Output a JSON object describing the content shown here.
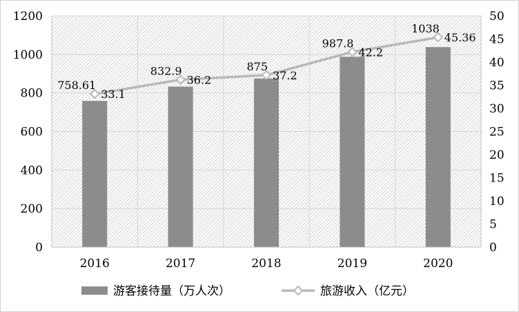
{
  "chart_data": {
    "type": "bar",
    "categories": [
      "2016",
      "2017",
      "2018",
      "2019",
      "2020"
    ],
    "series": [
      {
        "name": "游客接待量（万人次）",
        "kind": "bar",
        "axis": "left",
        "color": "#8c8c8c",
        "values": [
          758.61,
          832.9,
          875,
          987.8,
          1038
        ],
        "labels": [
          "758.61",
          "832.9",
          "875",
          "987.8",
          "1038"
        ]
      },
      {
        "name": "旅游收入（亿元）",
        "kind": "line",
        "axis": "right",
        "color": "#b8b8b8",
        "marker": "diamond",
        "values": [
          33.1,
          36.2,
          37.2,
          42.2,
          45.36
        ],
        "labels": [
          "33.1",
          "36.2",
          "37.2",
          "42.2",
          "45.36"
        ]
      }
    ],
    "y_left": {
      "ylim": [
        0,
        1200
      ],
      "ticks": [
        "0",
        "200",
        "400",
        "600",
        "800",
        "1000",
        "1200"
      ]
    },
    "y_right": {
      "ylim": [
        0,
        50
      ],
      "ticks": [
        "0",
        "5",
        "10",
        "15",
        "20",
        "25",
        "30",
        "35",
        "40",
        "45",
        "50"
      ]
    },
    "grid": true,
    "plot_background": "hatched",
    "legend_position": "bottom"
  }
}
